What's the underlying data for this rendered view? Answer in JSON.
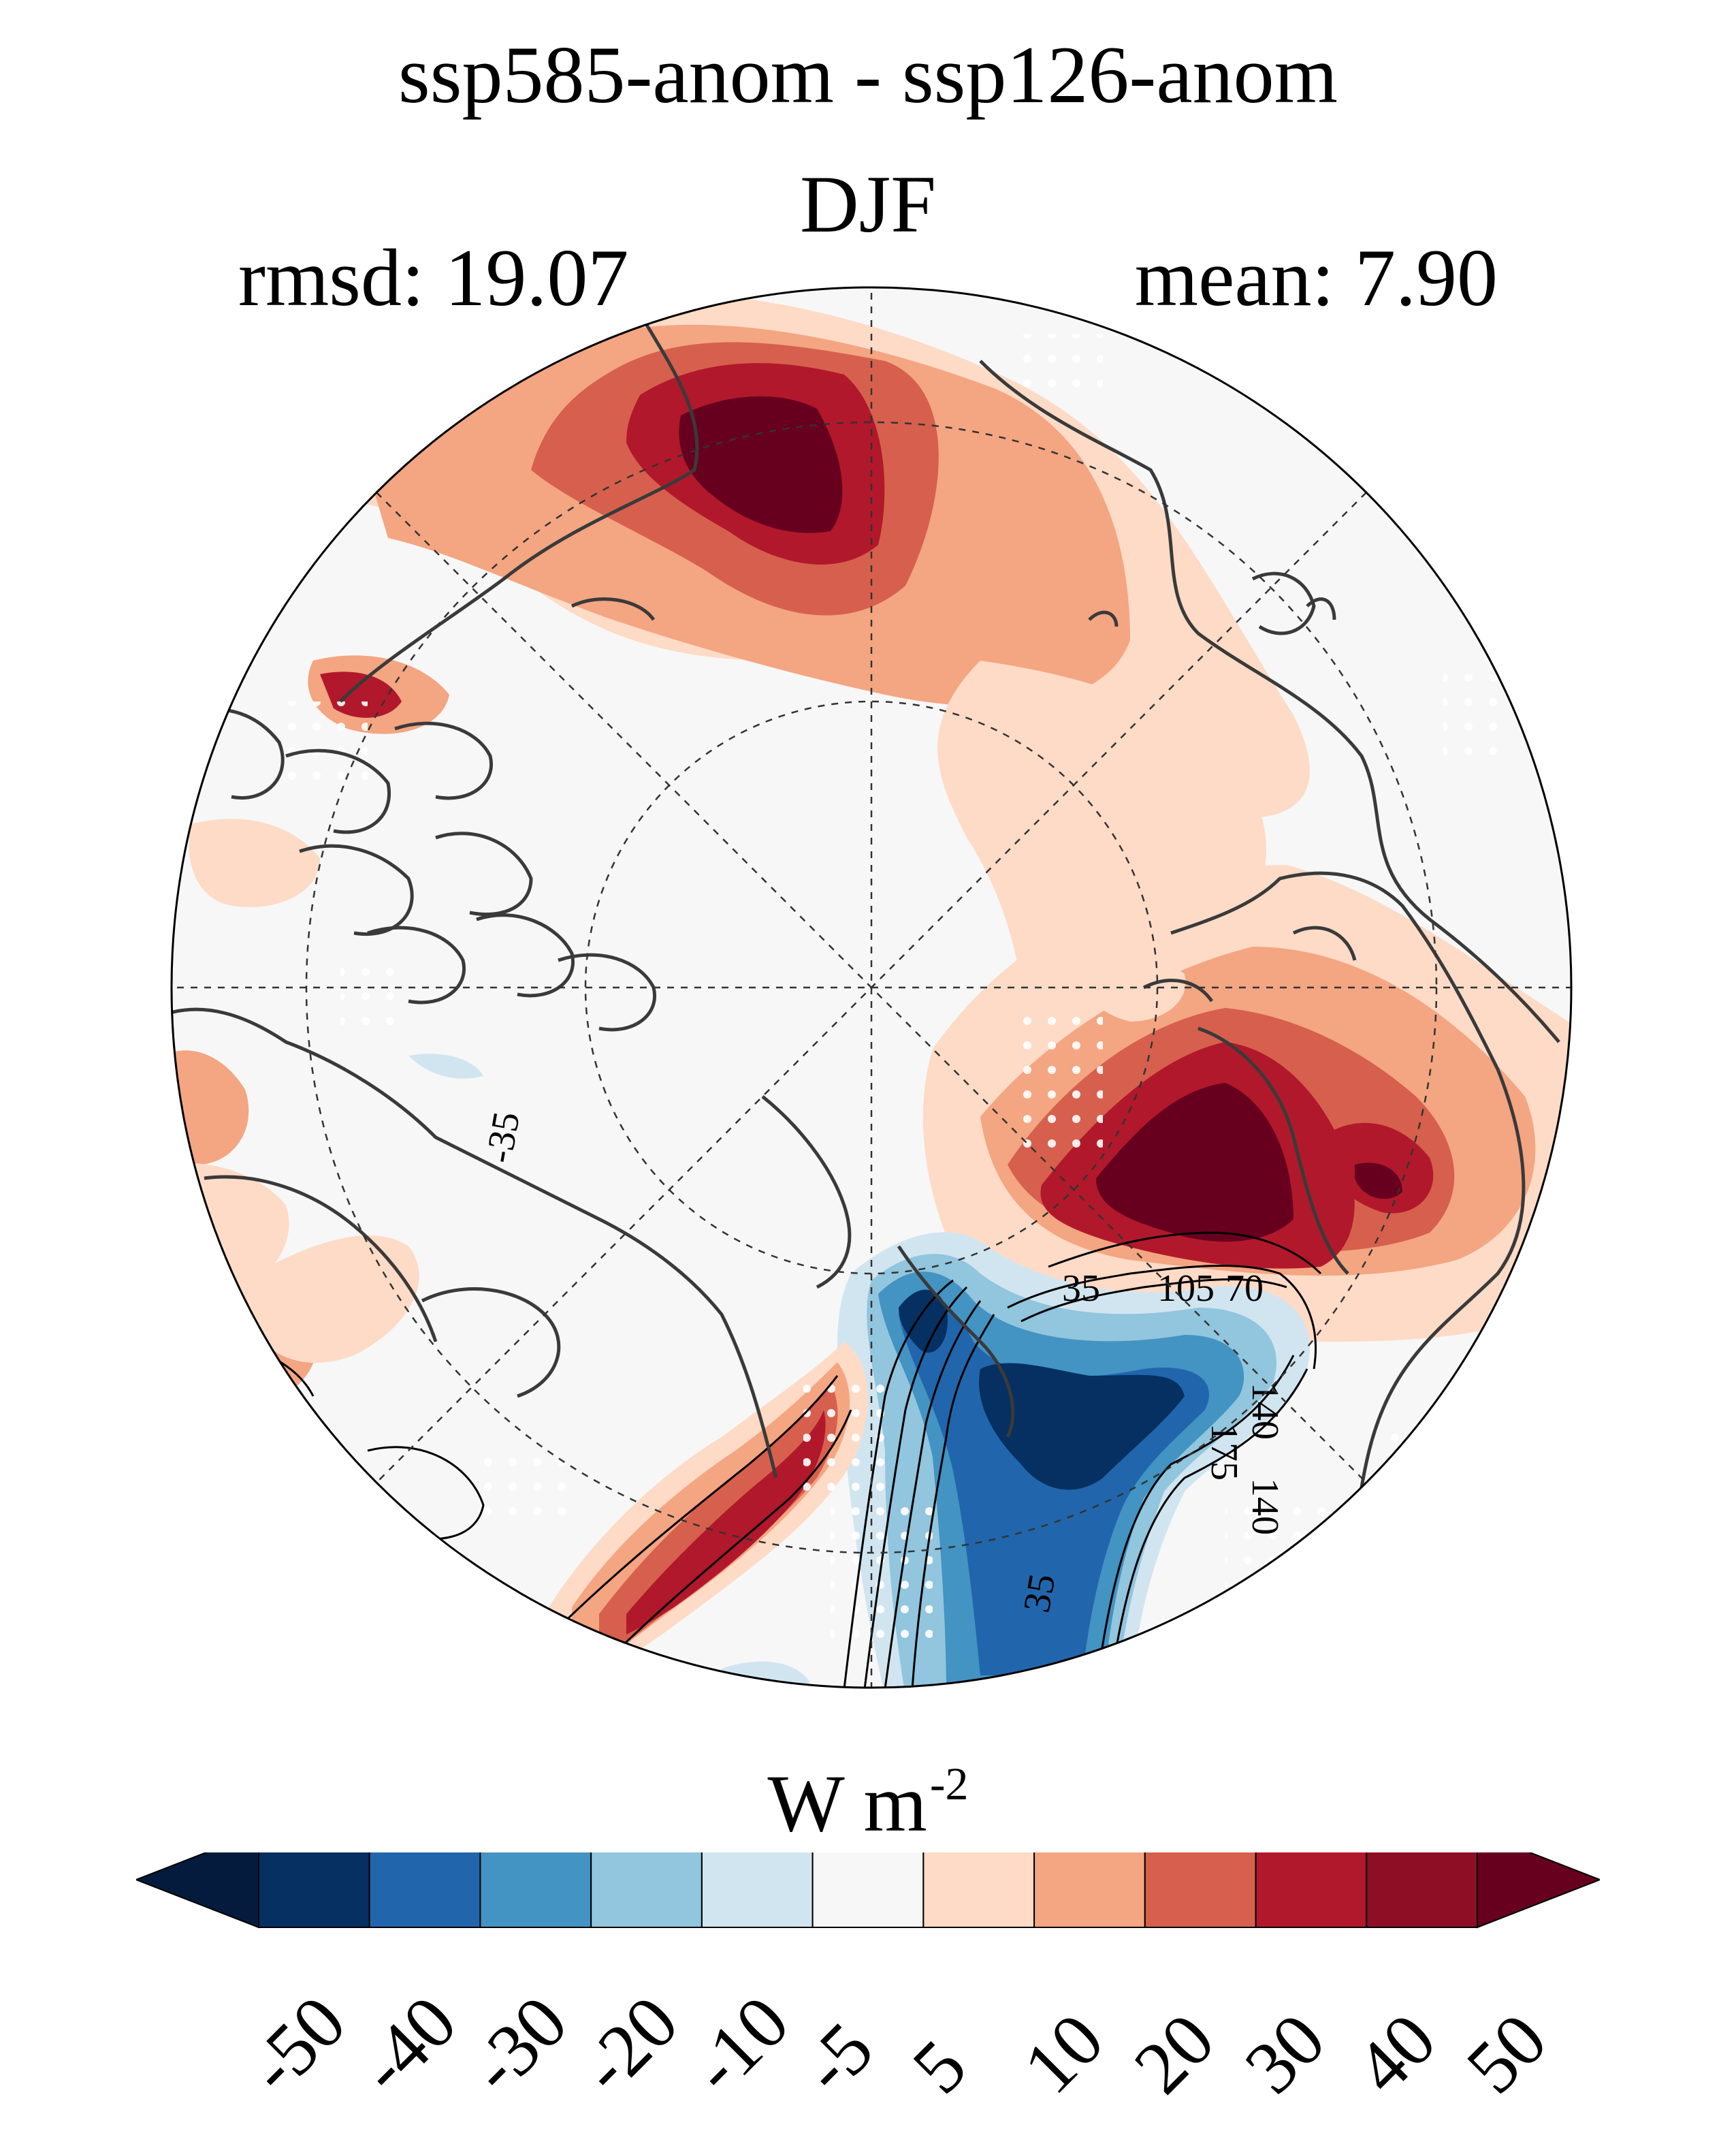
{
  "title": "ssp585-anom - ssp126-anom",
  "season": "DJF",
  "stats": {
    "rmsd_label": "rmsd: 19.07",
    "mean_label": "mean: 7.90"
  },
  "colorbar": {
    "units": "W m",
    "units_exp": "-2",
    "extend": "both",
    "levels": [
      "-50",
      "-40",
      "-30",
      "-20",
      "-10",
      "-5",
      "5",
      "10",
      "20",
      "30",
      "40",
      "50"
    ],
    "colors": [
      "#053061",
      "#2166ac",
      "#4393c3",
      "#92c5de",
      "#d1e5f0",
      "#f7f7f7",
      "#fddbc7",
      "#f4a582",
      "#d6604d",
      "#b2182b",
      "#8e0f25"
    ],
    "under_color": "#041b3d",
    "over_color": "#67001f"
  },
  "map": {
    "projection": "north polar stereographic",
    "ocean_color": "#f7f7f7",
    "coast_color": "#3a3a3a",
    "contour_labels": [
      "-35",
      "35",
      "70",
      "105",
      "140",
      "175",
      "140",
      "35"
    ]
  }
}
